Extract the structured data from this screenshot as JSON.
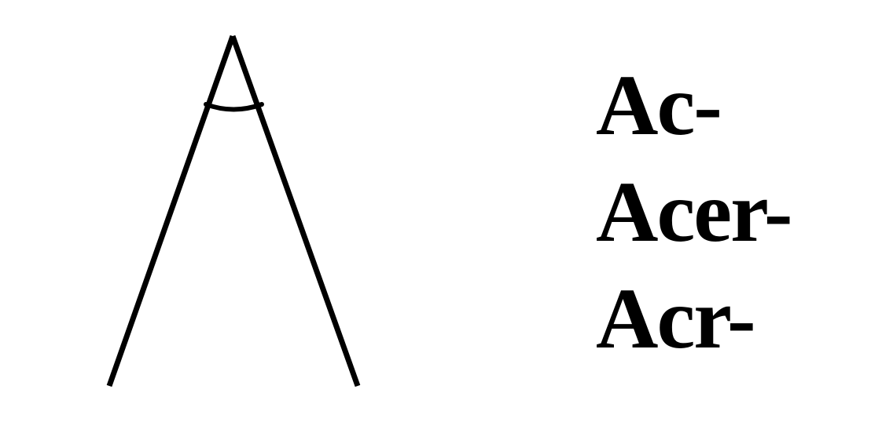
{
  "diagram": {
    "stroke_color": "#000000",
    "background_color": "#ffffff",
    "shape": "acute-angle-vertex-with-arc"
  },
  "prefixes": [
    "Ac-",
    "Acer-",
    "Acr-"
  ]
}
